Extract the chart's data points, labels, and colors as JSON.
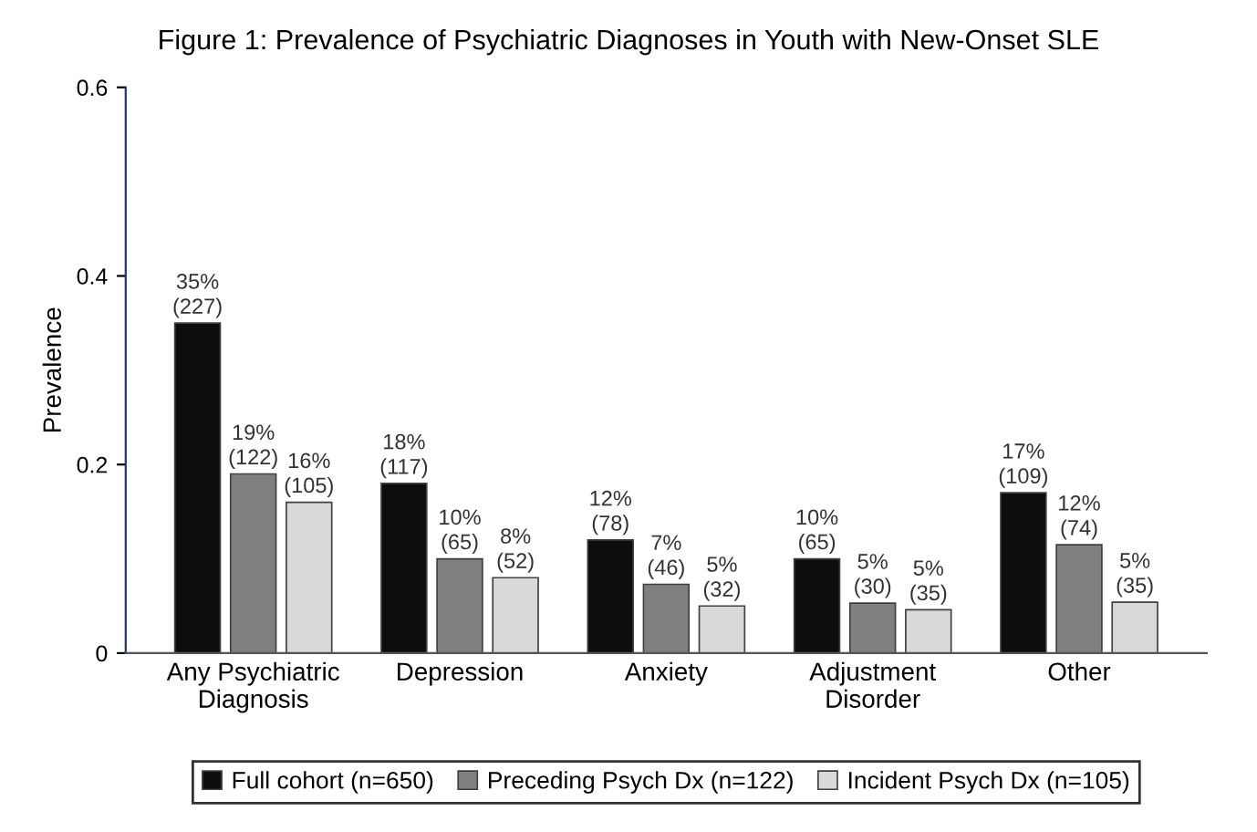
{
  "chart_data": {
    "type": "bar",
    "title": "Figure 1: Prevalence of Psychiatric Diagnoses in Youth with New-Onset SLE",
    "ylabel": "Prevalence",
    "categories": [
      "Any Psychiatric\nDiagnosis",
      "Depression",
      "Anxiety",
      "Adjustment\nDisorder",
      "Other"
    ],
    "series": [
      {
        "name": "Full cohort (n=650)",
        "color": "#0d0d0d",
        "values": [
          0.35,
          0.18,
          0.12,
          0.1,
          0.17
        ],
        "value_labels": [
          "35%\n(227)",
          "18%\n(117)",
          "12%\n(78)",
          "10%\n(65)",
          "17%\n(109)"
        ]
      },
      {
        "name": "Preceding Psych Dx (n=122)",
        "color": "#7f7f7f",
        "values": [
          0.19,
          0.1,
          0.073,
          0.053,
          0.115
        ],
        "value_labels": [
          "19%\n(122)",
          "10%\n(65)",
          "7%\n(46)",
          "5%\n(30)",
          "12%\n(74)"
        ]
      },
      {
        "name": "Incident Psych Dx (n=105)",
        "color": "#d9d9d9",
        "values": [
          0.16,
          0.08,
          0.05,
          0.046,
          0.054
        ],
        "value_labels": [
          "16%\n(105)",
          "8%\n(52)",
          "5%\n(32)",
          "5%\n(35)",
          "5%\n(35)"
        ]
      }
    ],
    "ylim": [
      0,
      0.6
    ],
    "yticks": [
      0,
      0.2,
      0.4,
      0.6
    ],
    "grid": false,
    "legend": "bottom"
  }
}
